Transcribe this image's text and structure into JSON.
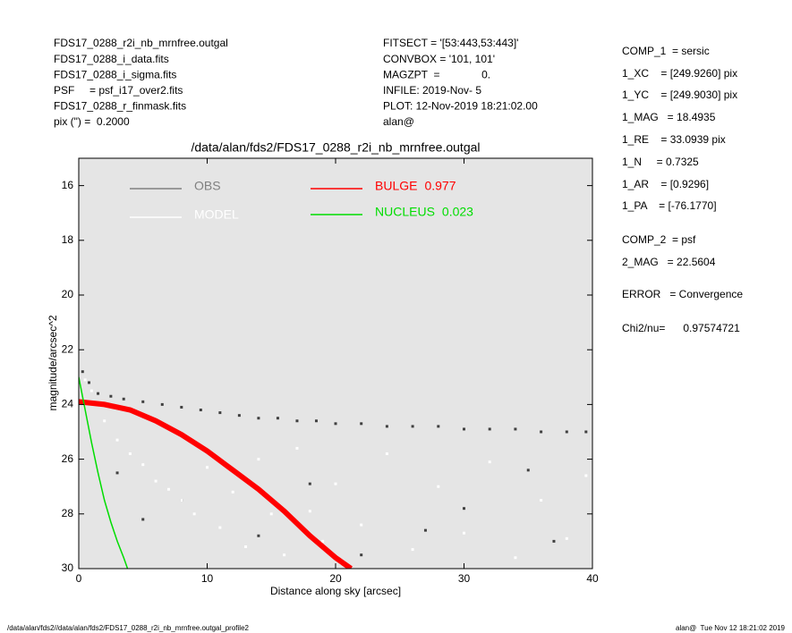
{
  "header": {
    "left": [
      "FDS17_0288_r2i_nb_mrnfree.outgal",
      "FDS17_0288_i_data.fits",
      "FDS17_0288_i_sigma.fits",
      "PSF     = psf_i17_over2.fits",
      "FDS17_0288_r_finmask.fits",
      "pix (\") =  0.2000"
    ],
    "center": [
      "FITSECT = '[53:443,53:443]'",
      "CONVBOX = '101, 101'",
      "MAGZPT  =              0.",
      "INFILE: 2019-Nov- 5",
      "PLOT: 12-Nov-2019 18:21:02.00",
      "alan@"
    ]
  },
  "panel": [
    "COMP_1  = sersic",
    "1_XC    = [249.9260] pix",
    "1_YC    = [249.9030] pix",
    "1_MAG   = 18.4935",
    "1_RE    = 33.0939 pix",
    "1_N     = 0.7325",
    "1_AR    = [0.9296]",
    "1_PA    = [-76.1770]",
    "COMP_2  = psf",
    "2_MAG   = 22.5604",
    "ERROR   = Convergence",
    "Chi2/nu=      0.97574721"
  ],
  "footer": {
    "left": "/data/alan/fds2//data/alan/fds2/FDS17_0288_r2i_nb_mrnfree.outgal_profile2",
    "right": "alan@  Tue Nov 12 18:21:02 2019"
  },
  "chart_data": {
    "type": "scatter",
    "title": "/data/alan/fds2/FDS17_0288_r2i_nb_mrnfree.outgal",
    "xlabel": "Distance along sky [arcsec]",
    "ylabel": "magnitude/arcsec^2",
    "xlim": [
      0,
      40
    ],
    "xticks": [
      0,
      10,
      20,
      30,
      40
    ],
    "ylim": [
      30,
      15
    ],
    "yticks": [
      16,
      18,
      20,
      22,
      24,
      26,
      28,
      30
    ],
    "background": "#e5e5e5",
    "series": [
      {
        "name": "OBS",
        "color": "#404040",
        "kind": "points",
        "x": [
          0.3,
          0.8,
          1.5,
          2.5,
          3.5,
          5,
          6.5,
          8,
          9.5,
          11,
          12.5,
          14,
          15.5,
          17,
          18.5,
          20,
          22,
          24,
          26,
          28,
          30,
          32,
          34,
          36,
          38,
          39.5,
          3,
          8,
          14,
          22,
          30,
          37,
          5,
          18,
          27,
          35
        ],
        "values": [
          22.8,
          23.2,
          23.6,
          23.7,
          23.8,
          23.9,
          24.0,
          24.1,
          24.2,
          24.3,
          24.4,
          24.5,
          24.5,
          24.6,
          24.6,
          24.7,
          24.7,
          24.8,
          24.8,
          24.8,
          24.9,
          24.9,
          24.9,
          25.0,
          25.0,
          25.0,
          26.5,
          27.5,
          28.8,
          29.5,
          27.8,
          29.0,
          28.2,
          26.9,
          28.6,
          26.4
        ]
      },
      {
        "name": "MODEL",
        "color": "#ffffff",
        "kind": "points",
        "x": [
          0.5,
          1,
          2,
          3,
          4,
          5,
          6,
          7,
          8,
          9,
          10,
          11,
          12,
          13,
          14,
          15,
          16,
          17,
          18,
          19,
          20,
          22,
          24,
          26,
          28,
          30,
          32,
          34,
          36,
          38,
          39.5
        ],
        "values": [
          23.1,
          23.5,
          24.6,
          25.3,
          25.8,
          26.2,
          26.8,
          27.1,
          27.5,
          28.0,
          26.3,
          28.5,
          27.2,
          29.2,
          26.0,
          28.0,
          29.5,
          25.6,
          27.9,
          29.0,
          26.9,
          28.4,
          25.8,
          29.3,
          27.0,
          28.7,
          26.1,
          29.6,
          27.5,
          28.9,
          26.6
        ]
      },
      {
        "name": "BULGE",
        "fraction": 0.977,
        "color": "#ff0000",
        "kind": "line",
        "x": [
          0,
          2,
          4,
          6,
          8,
          10,
          12,
          14,
          16,
          18,
          20,
          21.2
        ],
        "values": [
          23.9,
          24.0,
          24.2,
          24.6,
          25.1,
          25.7,
          26.4,
          27.1,
          27.9,
          28.8,
          29.6,
          30.0
        ]
      },
      {
        "name": "NUCLEUS",
        "fraction": 0.023,
        "color": "#00dd00",
        "kind": "line",
        "x": [
          0,
          0.5,
          1,
          1.5,
          2,
          2.5,
          3,
          3.5,
          3.8
        ],
        "values": [
          23.0,
          24.2,
          25.4,
          26.5,
          27.5,
          28.3,
          29.0,
          29.6,
          30.0
        ]
      }
    ]
  }
}
